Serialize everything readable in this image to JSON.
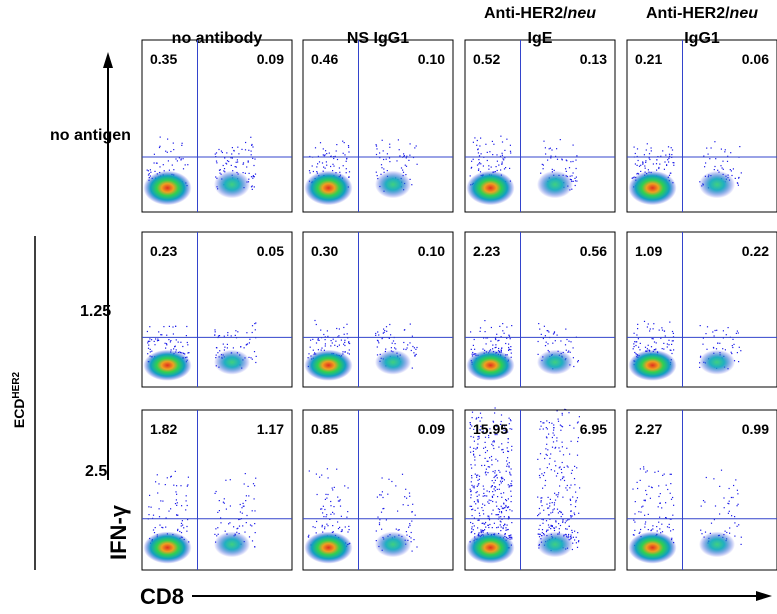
{
  "columns": [
    {
      "text": "no antibody"
    },
    {
      "text": "NS IgG1"
    },
    {
      "text": "Anti-HER2/",
      "italic": "neu",
      "line2": "IgE"
    },
    {
      "text": "Anti-HER2/",
      "italic": "neu",
      "line2": "IgG1"
    }
  ],
  "rows": [
    "no antigen",
    "1.25",
    "2.5"
  ],
  "row_group": {
    "text": "ECD",
    "sup": "HER2"
  },
  "y_axis": "IFN-γ",
  "x_axis": "CD8",
  "panels": [
    [
      [
        "0.35",
        "0.09"
      ],
      [
        "0.46",
        "0.10"
      ],
      [
        "0.52",
        "0.13"
      ],
      [
        "0.21",
        "0.06"
      ]
    ],
    [
      [
        "0.23",
        "0.05"
      ],
      [
        "0.30",
        "0.10"
      ],
      [
        "2.23",
        "0.56"
      ],
      [
        "1.09",
        "0.22"
      ]
    ],
    [
      [
        "1.82",
        "1.17"
      ],
      [
        "0.85",
        "0.09"
      ],
      [
        "15.95",
        "6.95"
      ],
      [
        "2.27",
        "0.99"
      ]
    ]
  ]
}
